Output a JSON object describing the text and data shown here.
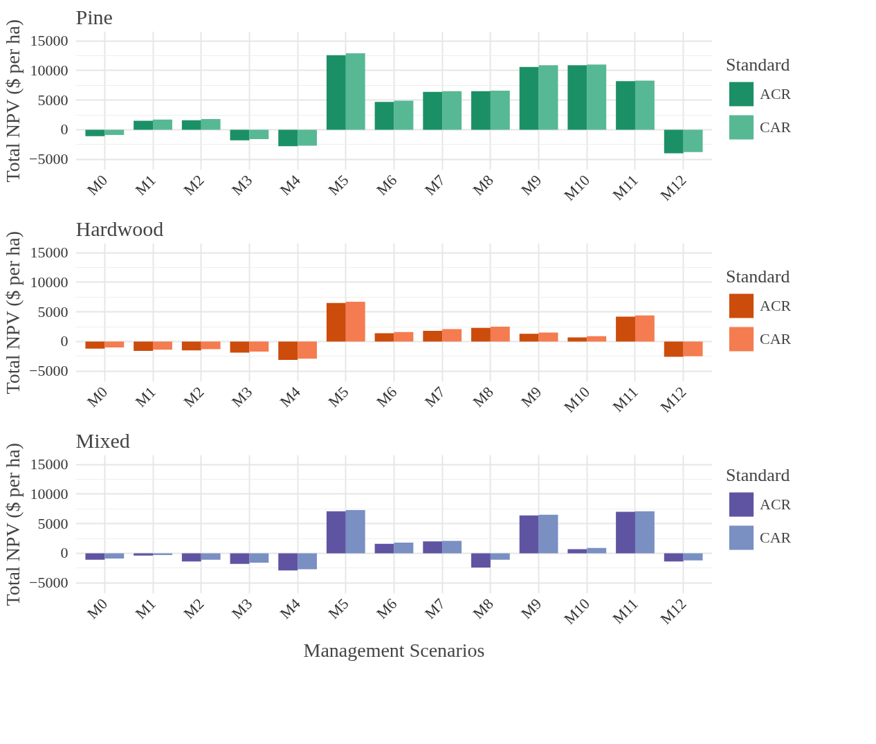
{
  "chart_data": [
    {
      "type": "bar",
      "title": "Pine",
      "ylabel": "Total NPV ($ per ha)",
      "legend_title": "Standard",
      "categories": [
        "M0",
        "M1",
        "M2",
        "M3",
        "M4",
        "M5",
        "M6",
        "M7",
        "M8",
        "M9",
        "M10",
        "M11",
        "M12"
      ],
      "ylim": [
        -6800,
        16600
      ],
      "yticks": [
        -5000,
        0,
        5000,
        10000,
        15000
      ],
      "grid": true,
      "legend": "right",
      "series": [
        {
          "name": "ACR",
          "color": "#1b9066",
          "values": [
            -1100,
            1500,
            1600,
            -1800,
            -2800,
            12600,
            4700,
            6400,
            6500,
            10600,
            10900,
            8200,
            -4000
          ]
        },
        {
          "name": "CAR",
          "color": "#57b894",
          "values": [
            -900,
            1700,
            1800,
            -1600,
            -2700,
            12900,
            4900,
            6500,
            6600,
            10900,
            11000,
            8300,
            -3800
          ]
        }
      ]
    },
    {
      "type": "bar",
      "title": "Hardwood",
      "ylabel": "Total NPV ($ per ha)",
      "legend_title": "Standard",
      "categories": [
        "M0",
        "M1",
        "M2",
        "M3",
        "M4",
        "M5",
        "M6",
        "M7",
        "M8",
        "M9",
        "M10",
        "M11",
        "M12"
      ],
      "ylim": [
        -6800,
        16600
      ],
      "yticks": [
        -5000,
        0,
        5000,
        10000,
        15000
      ],
      "grid": true,
      "legend": "right",
      "series": [
        {
          "name": "ACR",
          "color": "#cc4c0c",
          "values": [
            -1200,
            -1600,
            -1500,
            -1900,
            -3100,
            6500,
            1400,
            1800,
            2300,
            1300,
            700,
            4200,
            -2600
          ]
        },
        {
          "name": "CAR",
          "color": "#f47c50",
          "values": [
            -1000,
            -1400,
            -1300,
            -1700,
            -2900,
            6700,
            1600,
            2100,
            2500,
            1500,
            900,
            4400,
            -2500
          ]
        }
      ]
    },
    {
      "type": "bar",
      "title": "Mixed",
      "ylabel": "Total NPV ($ per ha)",
      "xlabel": "Management Scenarios",
      "legend_title": "Standard",
      "categories": [
        "M0",
        "M1",
        "M2",
        "M3",
        "M4",
        "M5",
        "M6",
        "M7",
        "M8",
        "M9",
        "M10",
        "M11",
        "M12"
      ],
      "ylim": [
        -6800,
        16600
      ],
      "yticks": [
        -5000,
        0,
        5000,
        10000,
        15000
      ],
      "grid": true,
      "legend": "right",
      "series": [
        {
          "name": "ACR",
          "color": "#5f54a2",
          "values": [
            -1100,
            -400,
            -1400,
            -1800,
            -2900,
            7100,
            1600,
            2000,
            -2400,
            6400,
            700,
            7000,
            -1400
          ]
        },
        {
          "name": "CAR",
          "color": "#7a8fc2",
          "values": [
            -900,
            -300,
            -1100,
            -1600,
            -2700,
            7300,
            1800,
            2100,
            -1100,
            6500,
            900,
            7100,
            -1200
          ]
        }
      ]
    }
  ]
}
